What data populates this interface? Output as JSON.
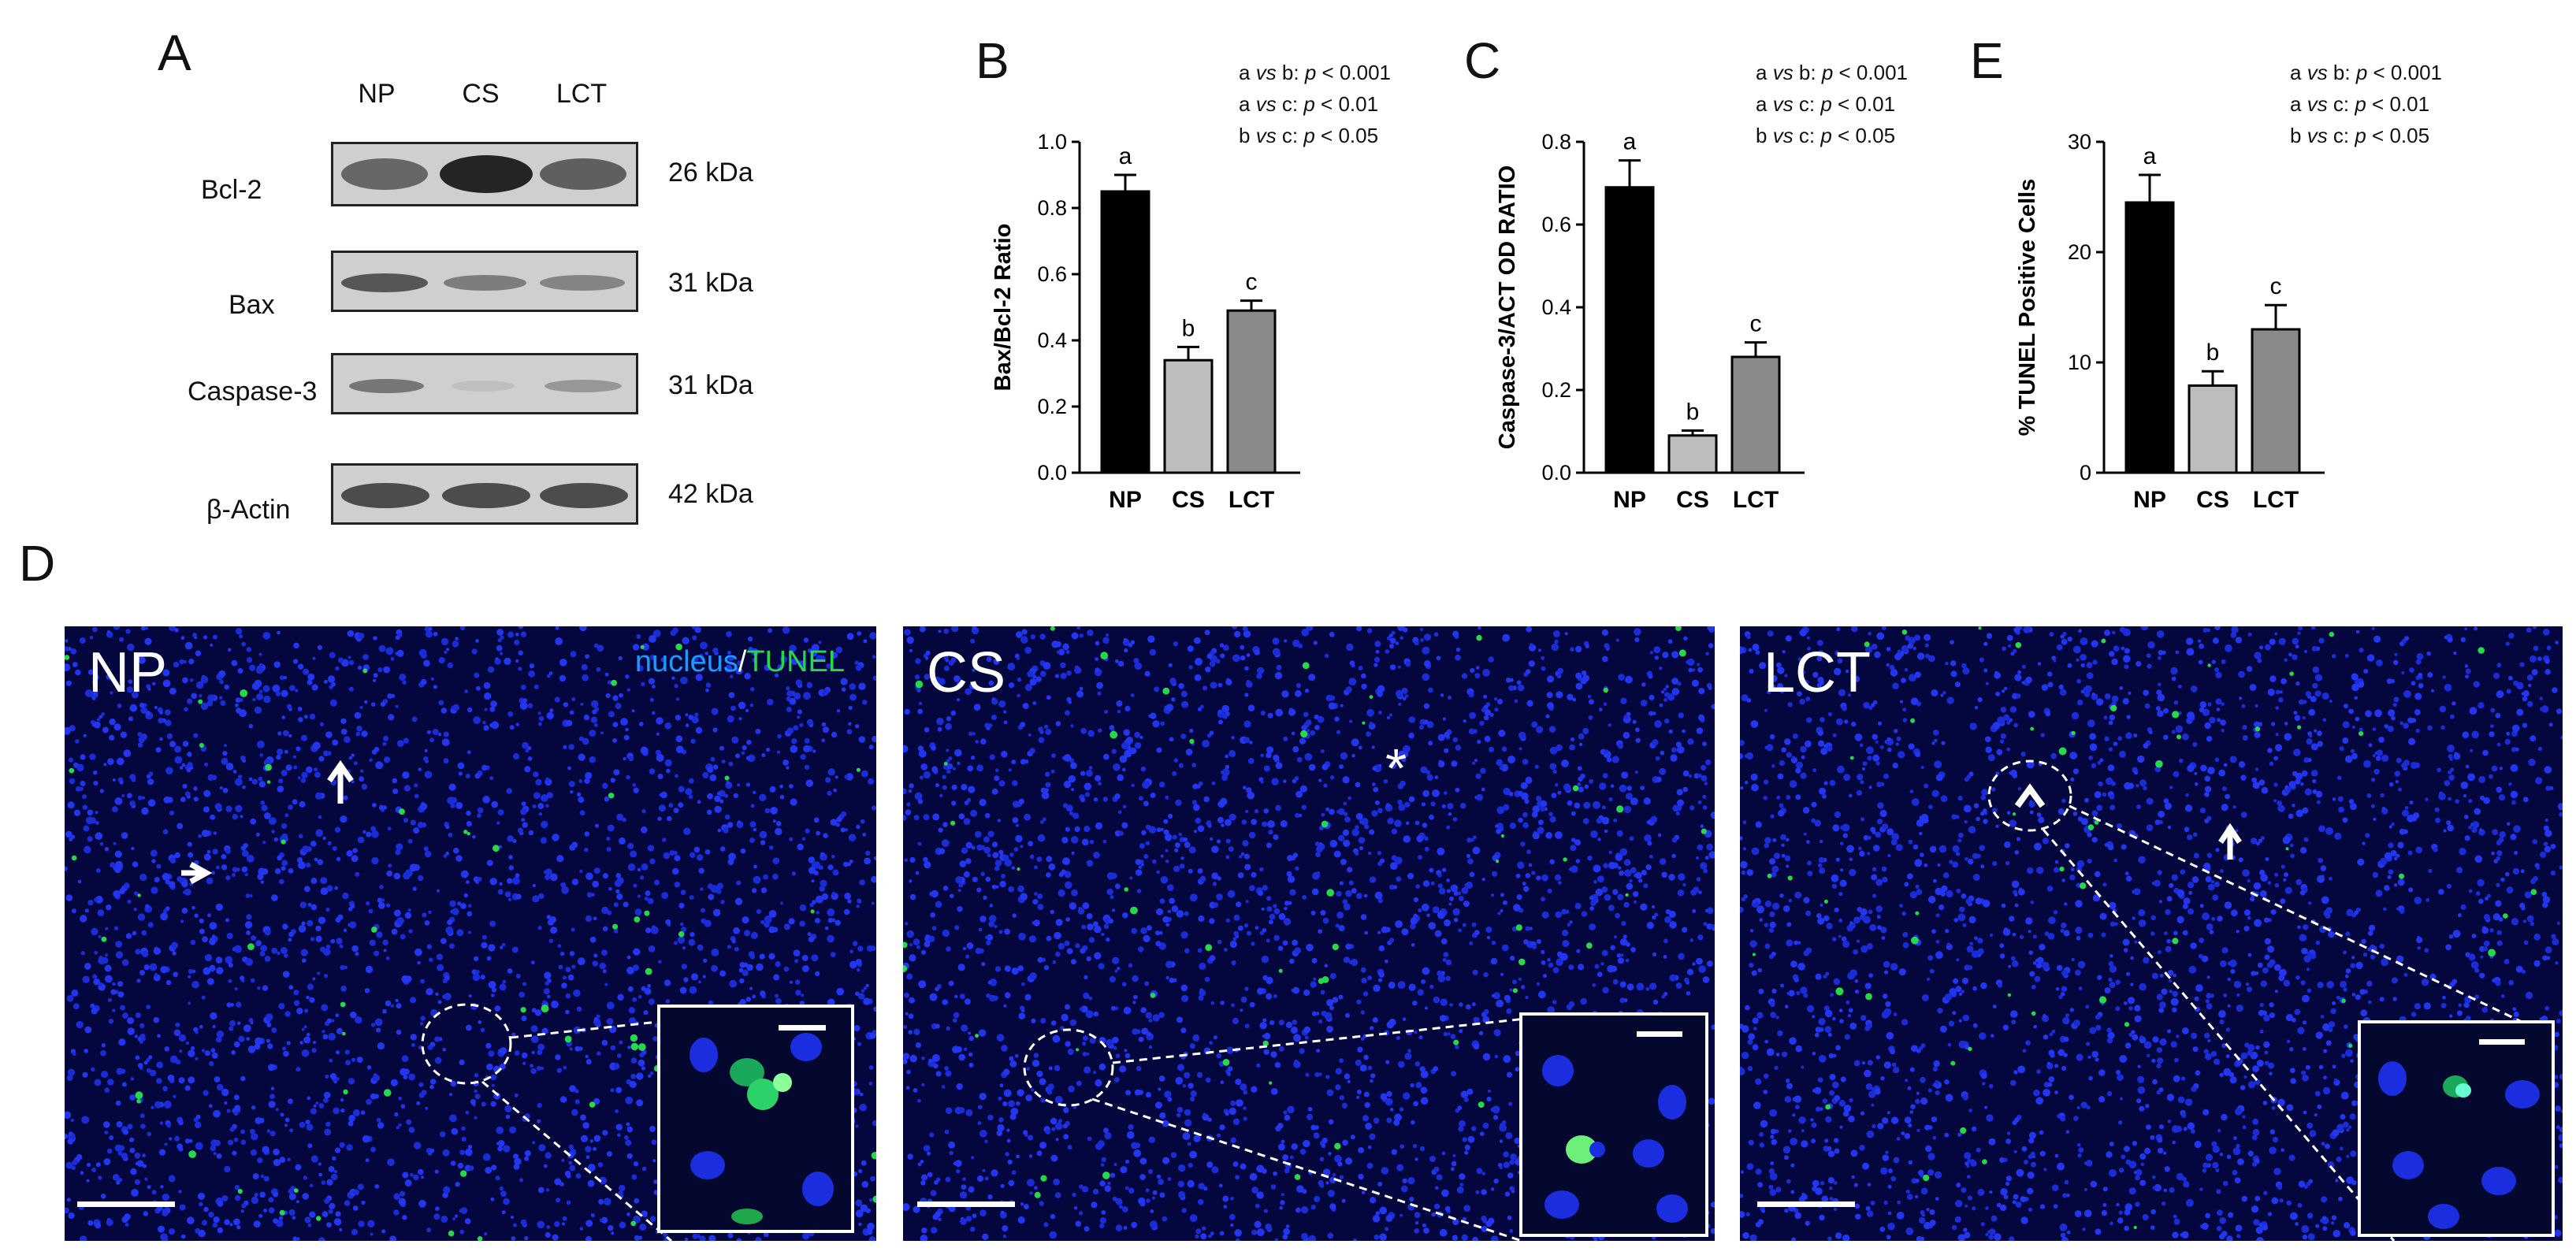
{
  "panels": {
    "A": "A",
    "B": "B",
    "C": "C",
    "D": "D",
    "E": "E"
  },
  "western_blot": {
    "lanes": [
      "NP",
      "CS",
      "LCT"
    ],
    "rows": [
      {
        "label": "Bcl-2",
        "kda": "26 kDa",
        "intensity": [
          0.7,
          1.0,
          0.75
        ]
      },
      {
        "label": "Bax",
        "kda": "31 kDa",
        "intensity": [
          0.75,
          0.55,
          0.5
        ]
      },
      {
        "label": "Caspase-3",
        "kda": "31 kDa",
        "intensity": [
          0.6,
          0.12,
          0.4
        ]
      },
      {
        "label": "β-Actin",
        "kda": "42 kDa",
        "intensity": [
          0.8,
          0.8,
          0.8
        ]
      }
    ]
  },
  "stats_text": {
    "line1_pre": "a ",
    "vs": "vs",
    "line1_mid": " b: ",
    "p": "p",
    "line1_post": " < 0.001",
    "line2_mid": " c: ",
    "line2_post": " < 0.01",
    "line3_pre": "b ",
    "line3_post": " < 0.05"
  },
  "chart_data": [
    {
      "type": "bar",
      "categories": [
        "NP",
        "CS",
        "LCT"
      ],
      "values": [
        0.85,
        0.34,
        0.49
      ],
      "errors": [
        0.05,
        0.04,
        0.03
      ],
      "letters": [
        "a",
        "b",
        "c"
      ],
      "colors": [
        "#000000",
        "#bdbdbd",
        "#8a8a8a"
      ],
      "ylabel": "Bax/Bcl-2 Ratio",
      "ylim": [
        0,
        1.0
      ],
      "yticks": [
        "0.0",
        "0.2",
        "0.4",
        "0.6",
        "0.8",
        "1.0"
      ]
    },
    {
      "type": "bar",
      "categories": [
        "NP",
        "CS",
        "LCT"
      ],
      "values": [
        0.69,
        0.09,
        0.28
      ],
      "errors": [
        0.065,
        0.012,
        0.035
      ],
      "letters": [
        "a",
        "b",
        "c"
      ],
      "colors": [
        "#000000",
        "#bdbdbd",
        "#8a8a8a"
      ],
      "ylabel": "Caspase-3/ACT OD RATIO",
      "ylim": [
        0,
        0.8
      ],
      "yticks": [
        "0.0",
        "0.2",
        "0.4",
        "0.6",
        "0.8"
      ]
    },
    {
      "type": "bar",
      "categories": [
        "NP",
        "CS",
        "LCT"
      ],
      "values": [
        24.5,
        7.9,
        13.0
      ],
      "errors": [
        2.5,
        1.3,
        2.2
      ],
      "letters": [
        "a",
        "b",
        "c"
      ],
      "colors": [
        "#000000",
        "#bdbdbd",
        "#8a8a8a"
      ],
      "ylabel": "% TUNEL Positive Cells",
      "ylim": [
        0,
        30
      ],
      "yticks": [
        "0",
        "10",
        "20",
        "30"
      ]
    }
  ],
  "microscopy": {
    "legend_nucleus": "nucleus",
    "legend_sep": "/",
    "legend_tunel": "TUNEL",
    "nucleus_color": "#1b9bff",
    "tunel_color": "#26d94a",
    "images": [
      {
        "label": "NP",
        "marker": "arrow"
      },
      {
        "label": "CS",
        "marker": "*"
      },
      {
        "label": "LCT",
        "marker": "^"
      }
    ]
  }
}
